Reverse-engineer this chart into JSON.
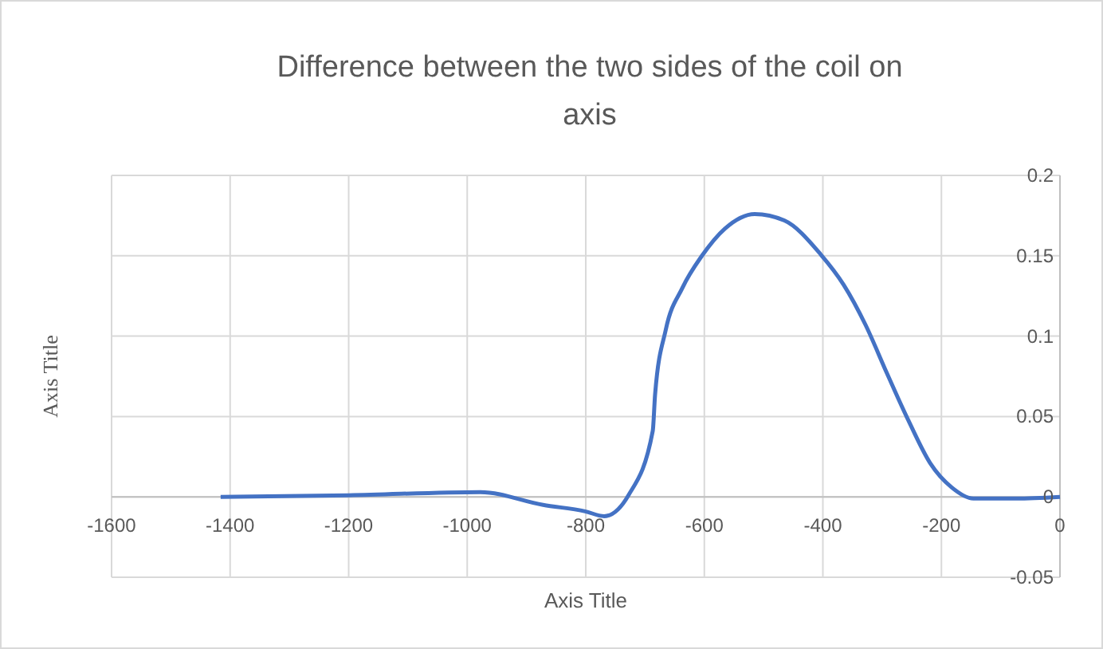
{
  "chart_data": {
    "type": "line",
    "title": "Difference between the two sides of the coil on axis",
    "xlabel": "Axis Title",
    "ylabel": "Axis Title",
    "series": [
      {
        "color": "#4472c4",
        "x": [
          -1416,
          -1200,
          -978,
          -872,
          -801,
          -769,
          -728,
          -687,
          -683,
          -665,
          -637,
          -604,
          -565,
          -515,
          -465,
          -404,
          -365,
          -328,
          -292,
          -255,
          -219,
          -183,
          -146,
          -74,
          0
        ],
        "values": [
          0,
          0.001,
          0.003,
          -0.005,
          -0.009,
          -0.012,
          0.001,
          0.041,
          0.064,
          0.104,
          0.13,
          0.15,
          0.167,
          0.176,
          0.172,
          0.151,
          0.132,
          0.107,
          0.077,
          0.047,
          0.021,
          0.006,
          -0.001,
          -0.001,
          0
        ]
      }
    ],
    "xlim": [
      -1600,
      0
    ],
    "xticks": [
      -1600,
      -1400,
      -1200,
      -1000,
      -800,
      -600,
      -400,
      -200,
      0
    ],
    "ylim": [
      -0.05,
      0.2
    ],
    "yticks": [
      -0.05,
      0,
      0.05,
      0.1,
      0.15,
      0.2
    ],
    "grid": true,
    "marker": "none",
    "line_style": "solid"
  }
}
